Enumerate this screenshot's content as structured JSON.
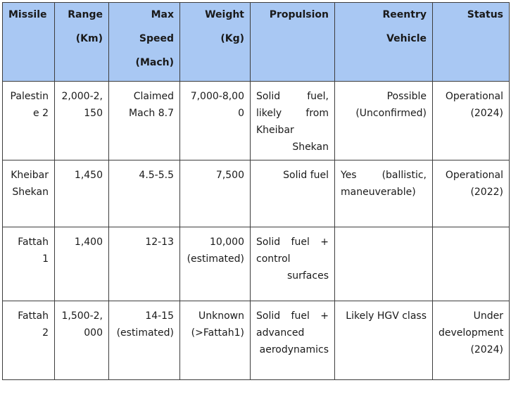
{
  "table": {
    "headers": [
      "Missile",
      "Range (Km)",
      "Max Speed (Mach)",
      "Weight (Kg)",
      "Propulsion",
      "Reentry Vehicle",
      "Status"
    ],
    "rows": [
      {
        "missile": "Palestine 2",
        "range": "2,000-2,150",
        "speed": "Claimed Mach 8.7",
        "weight": "7,000-8,000",
        "propulsion": "Solid fuel, likely from Kheibar Shekan",
        "reentry": "Possible (Unconfirmed)",
        "status": "Operational (2024)"
      },
      {
        "missile": "Kheibar Shekan",
        "range": "1,450",
        "speed": "4.5-5.5",
        "weight": "7,500",
        "propulsion": "Solid fuel",
        "reentry": "Yes (ballistic, maneuverable)",
        "status": "Operational (2022)"
      },
      {
        "missile": "Fattah 1",
        "range": "1,400",
        "speed": "12-13",
        "weight": "10,000 (estimated)",
        "propulsion": "Solid fuel + control surfaces",
        "reentry": "",
        "status": ""
      },
      {
        "missile": "Fattah 2",
        "range": "1,500-2,000",
        "speed": "14-15 (estimated)",
        "weight": "Unknown (>Fattah1)",
        "propulsion": "Solid fuel + advanced aerodynamics",
        "reentry": "Likely HGV class",
        "status": "Under development (2024)"
      }
    ]
  }
}
